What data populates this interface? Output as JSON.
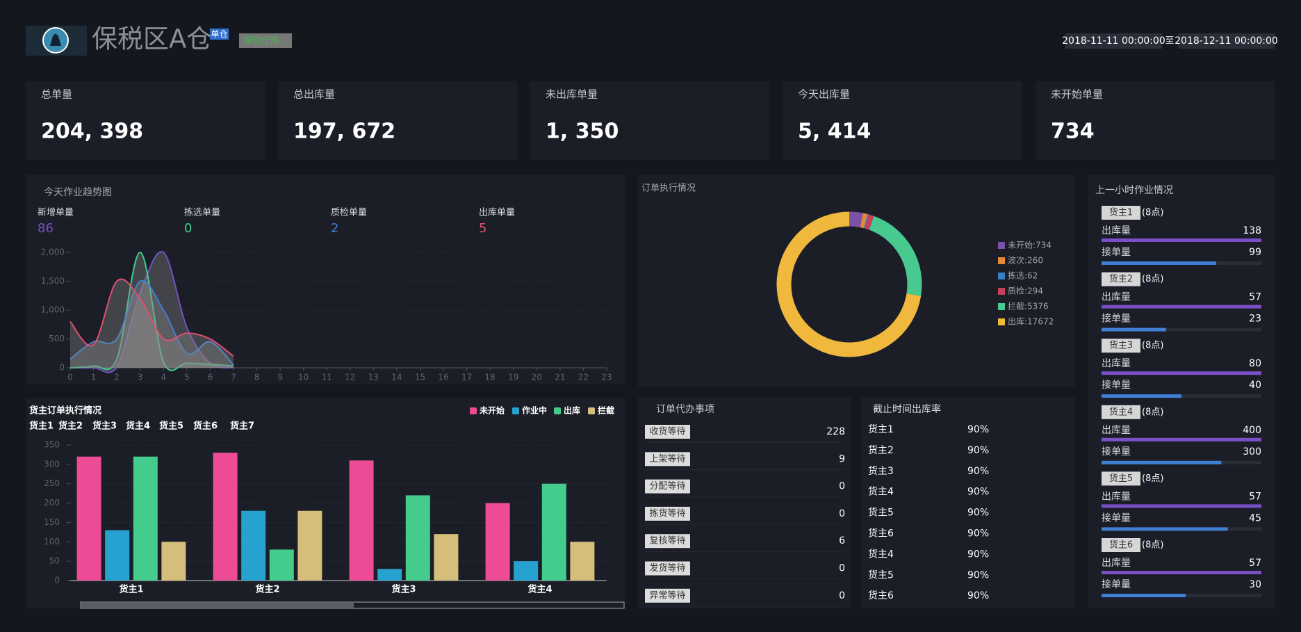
{
  "header": {
    "title": "保税区A仓",
    "badge": "单仓",
    "tag": "保税仓商...",
    "date_from": "2018-11-11 00:00:00",
    "date_sep": "至",
    "date_to": "2018-12-11 00:00:00"
  },
  "kpis": [
    {
      "label": "总单量",
      "value": "204, 398"
    },
    {
      "label": "总出库量",
      "value": "197, 672"
    },
    {
      "label": "未出库单量",
      "value": "1, 350"
    },
    {
      "label": "今天出库量",
      "value": "5, 414"
    },
    {
      "label": "未开始单量",
      "value": "734"
    }
  ],
  "chart_data": [
    {
      "type": "line",
      "title": "今天作业趋势图",
      "x": [
        0,
        1,
        2,
        3,
        4,
        5,
        6,
        7
      ],
      "xlim": [
        0,
        23
      ],
      "xticks": [
        0,
        1,
        2,
        3,
        4,
        5,
        6,
        7,
        8,
        9,
        10,
        11,
        12,
        13,
        14,
        15,
        16,
        17,
        18,
        19,
        20,
        21,
        22,
        23
      ],
      "ylim": [
        0,
        2000
      ],
      "yticks": [
        0,
        500,
        {
          "value": 1000,
          "label": "1,000"
        },
        {
          "value": 1500,
          "label": "1,500"
        },
        {
          "value": 2000,
          "label": "2,000"
        }
      ],
      "grid": true,
      "series": [
        {
          "name": "新增单量",
          "total": 86,
          "color": "#7451c4",
          "values": [
            0,
            0,
            20,
            1300,
            2000,
            700,
            80,
            0
          ]
        },
        {
          "name": "拣选单量",
          "total": 0,
          "color": "#3fcf8e",
          "values": [
            0,
            30,
            150,
            2000,
            100,
            80,
            60,
            30
          ]
        },
        {
          "name": "质检单量",
          "total": 2,
          "color": "#3f7fd6",
          "values": [
            150,
            450,
            500,
            1500,
            1000,
            250,
            450,
            50
          ]
        },
        {
          "name": "出库单量",
          "total": 5,
          "color": "#e0506e",
          "values": [
            800,
            400,
            1500,
            1200,
            500,
            600,
            500,
            200
          ]
        }
      ]
    },
    {
      "type": "pie",
      "title": "订单执行情况",
      "values": [
        734,
        260,
        62,
        294,
        5376,
        17672
      ],
      "value_labels": [
        "未开始:734",
        "波次:260",
        "拣选:62",
        "质检:294",
        "拦截:5376",
        "出库:17672"
      ],
      "colors": [
        "#7b52a8",
        "#e08a3a",
        "#3a7fc4",
        "#c8405a",
        "#48c98f",
        "#f0b93e"
      ],
      "legend": "right"
    },
    {
      "type": "bar",
      "title": "货主订单执行情况",
      "tabs": [
        "货主1",
        "货主2",
        "货主3",
        "货主4",
        "货主5",
        "货主6",
        "货主7"
      ],
      "categories": [
        "货主1",
        "货主2",
        "货主3",
        "货主4"
      ],
      "ylim": [
        0,
        350
      ],
      "yticks": [
        0,
        50,
        100,
        150,
        200,
        250,
        300,
        350
      ],
      "grid": true,
      "legend": "top-right",
      "series": [
        {
          "name": "未开始",
          "color": "#ee4b97",
          "values": [
            320,
            330,
            310,
            200
          ]
        },
        {
          "name": "作业中",
          "color": "#27a2d0",
          "values": [
            130,
            180,
            30,
            50
          ]
        },
        {
          "name": "出库",
          "color": "#44cc8c",
          "values": [
            320,
            80,
            220,
            250
          ]
        },
        {
          "name": "拦截",
          "color": "#d4be7a",
          "values": [
            100,
            180,
            120,
            100
          ]
        }
      ]
    }
  ],
  "todo": {
    "title": "订单代办事项",
    "items": [
      {
        "label": "收货等待",
        "count": 228
      },
      {
        "label": "上架等待",
        "count": 9
      },
      {
        "label": "分配等待",
        "count": 0
      },
      {
        "label": "拣货等待",
        "count": 0
      },
      {
        "label": "复核等待",
        "count": 6
      },
      {
        "label": "发货等待",
        "count": 0
      },
      {
        "label": "异常等待",
        "count": 0
      }
    ]
  },
  "cutoff": {
    "title": "截止时间出库率",
    "rows": [
      {
        "owner": "货主1",
        "rate": "90%"
      },
      {
        "owner": "货主2",
        "rate": "90%"
      },
      {
        "owner": "货主3",
        "rate": "90%"
      },
      {
        "owner": "货主4",
        "rate": "90%"
      },
      {
        "owner": "货主5",
        "rate": "90%"
      },
      {
        "owner": "货主6",
        "rate": "90%"
      },
      {
        "owner": "货主4",
        "rate": "90%"
      },
      {
        "owner": "货主5",
        "rate": "90%"
      },
      {
        "owner": "货主6",
        "rate": "90%"
      }
    ]
  },
  "hourly": {
    "title": "上一小时作业情况",
    "metric_out": "出库量",
    "metric_in": "接单量",
    "groups": [
      {
        "owner": "货主1",
        "hour": "(8点)",
        "out": 138,
        "in": 99
      },
      {
        "owner": "货主2",
        "hour": "(8点)",
        "out": 57,
        "in": 23
      },
      {
        "owner": "货主3",
        "hour": "(8点)",
        "out": 80,
        "in": 40
      },
      {
        "owner": "货主4",
        "hour": "(8点)",
        "out": 400,
        "in": 300
      },
      {
        "owner": "货主5",
        "hour": "(8点)",
        "out": 57,
        "in": 45
      },
      {
        "owner": "货主6",
        "hour": "(8点)",
        "out": 57,
        "in": 30
      }
    ]
  }
}
